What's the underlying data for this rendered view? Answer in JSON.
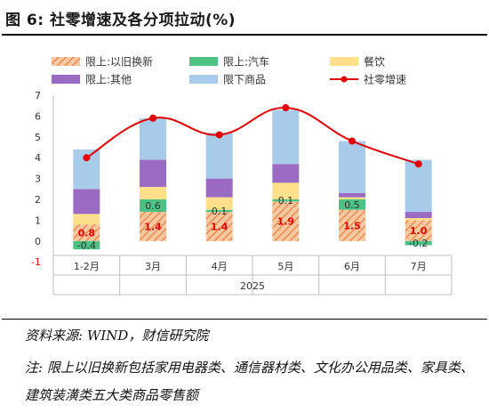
{
  "figure": {
    "title": "图 6:  社零增速及各分项拉动(%)",
    "source": "资料来源: WIND，财信研究院",
    "note": "注:  限上以旧换新包括家用电器类、通信器材类、文化办公用品类、家具类、建筑装潢类五大类商品零售额"
  },
  "chart_data": {
    "type": "bar",
    "stacked": true,
    "categories": [
      "1-2月",
      "3月",
      "4月",
      "5月",
      "6月",
      "7月"
    ],
    "group_label": "2025",
    "ylim": [
      -1,
      7
    ],
    "yticks": [
      -1,
      0,
      1,
      2,
      3,
      4,
      5,
      6,
      7
    ],
    "legend": [
      {
        "key": "trade_in",
        "label": "限上:以旧换新"
      },
      {
        "key": "auto",
        "label": "限上:汽车"
      },
      {
        "key": "catering",
        "label": "餐饮"
      },
      {
        "key": "other",
        "label": "限上:其他"
      },
      {
        "key": "below",
        "label": "限下商品"
      },
      {
        "key": "total",
        "label": "社零增速"
      }
    ],
    "series": [
      {
        "key": "trade_in",
        "name": "限上:以旧换新",
        "values": [
          0.8,
          1.4,
          1.4,
          1.9,
          1.5,
          1.0
        ],
        "labels": [
          "0.8",
          "1.4",
          "1.4",
          "1.9",
          "1.5",
          "1.0"
        ]
      },
      {
        "key": "auto",
        "name": "限上:汽车",
        "values": [
          -0.4,
          0.6,
          0.1,
          0.1,
          0.5,
          -0.2
        ],
        "labels": [
          "-0.4",
          "0.6",
          "0.1",
          "0.1",
          "0.5",
          "-0.2"
        ]
      },
      {
        "key": "catering",
        "name": "餐饮",
        "values": [
          0.5,
          0.6,
          0.6,
          0.8,
          0.1,
          0.1
        ]
      },
      {
        "key": "other",
        "name": "限上:其他",
        "values": [
          1.2,
          1.3,
          0.9,
          0.9,
          0.2,
          0.3
        ]
      },
      {
        "key": "below",
        "name": "限下商品",
        "values": [
          1.9,
          2.0,
          2.2,
          2.6,
          2.5,
          2.5
        ]
      }
    ],
    "line": {
      "key": "total",
      "name": "社零增速",
      "values": [
        4.0,
        5.9,
        5.1,
        6.4,
        4.8,
        3.7
      ]
    },
    "colors": {
      "trade_in": "#f6c9a3",
      "trade_in_stripe": "#ef8a4b",
      "auto": "#4cc285",
      "catering": "#ffe08a",
      "other": "#9b6bc4",
      "below": "#a8cbea",
      "total": "#e30000",
      "label_red": "#e60000",
      "label_dark": "#333333"
    }
  }
}
